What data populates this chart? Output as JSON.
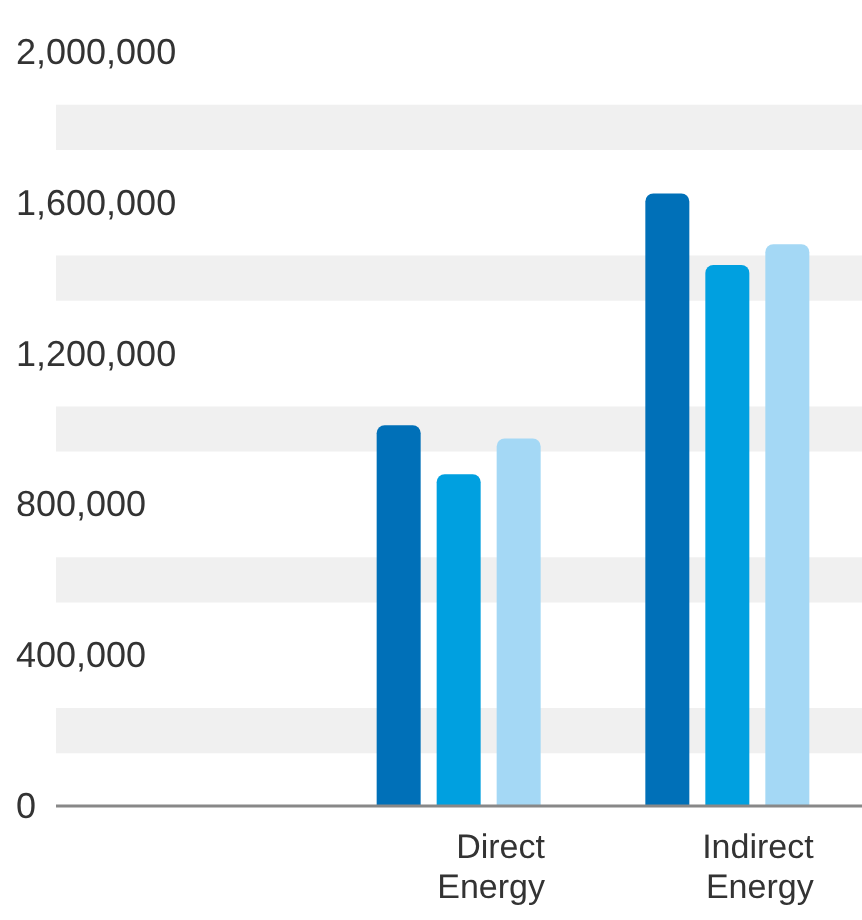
{
  "chart_data": {
    "type": "bar",
    "categories": [
      null,
      "Direct Energy",
      "Indirect Energy"
    ],
    "series": [
      {
        "color": "#0070b8",
        "values": [
          null,
          1010000,
          1625000
        ]
      },
      {
        "color": "#00a0e0",
        "values": [
          null,
          880000,
          1435000
        ]
      },
      {
        "color": "#a4d8f5",
        "values": [
          null,
          975000,
          1490000
        ]
      }
    ],
    "ylim": [
      0,
      2000000
    ],
    "yticks": [
      {
        "value": 0,
        "label": "0"
      },
      {
        "value": 400000,
        "label": "400,000"
      },
      {
        "value": 800000,
        "label": "800,000"
      },
      {
        "value": 1200000,
        "label": "1,200,000"
      },
      {
        "value": 1600000,
        "label": "1,600,000"
      },
      {
        "value": 2000000,
        "label": "2,000,000"
      }
    ],
    "bands": [
      {
        "axis": "y",
        "from": 140000,
        "to": 260000,
        "color": "#f0f0f0"
      },
      {
        "axis": "y",
        "from": 540000,
        "to": 660000,
        "color": "#f0f0f0"
      },
      {
        "axis": "y",
        "from": 940000,
        "to": 1060000,
        "color": "#f0f0f0"
      },
      {
        "axis": "y",
        "from": 1340000,
        "to": 1460000,
        "color": "#f0f0f0"
      },
      {
        "axis": "y",
        "from": 1740000,
        "to": 1860000,
        "color": "#f0f0f0"
      }
    ],
    "grid": false,
    "legend": false
  }
}
